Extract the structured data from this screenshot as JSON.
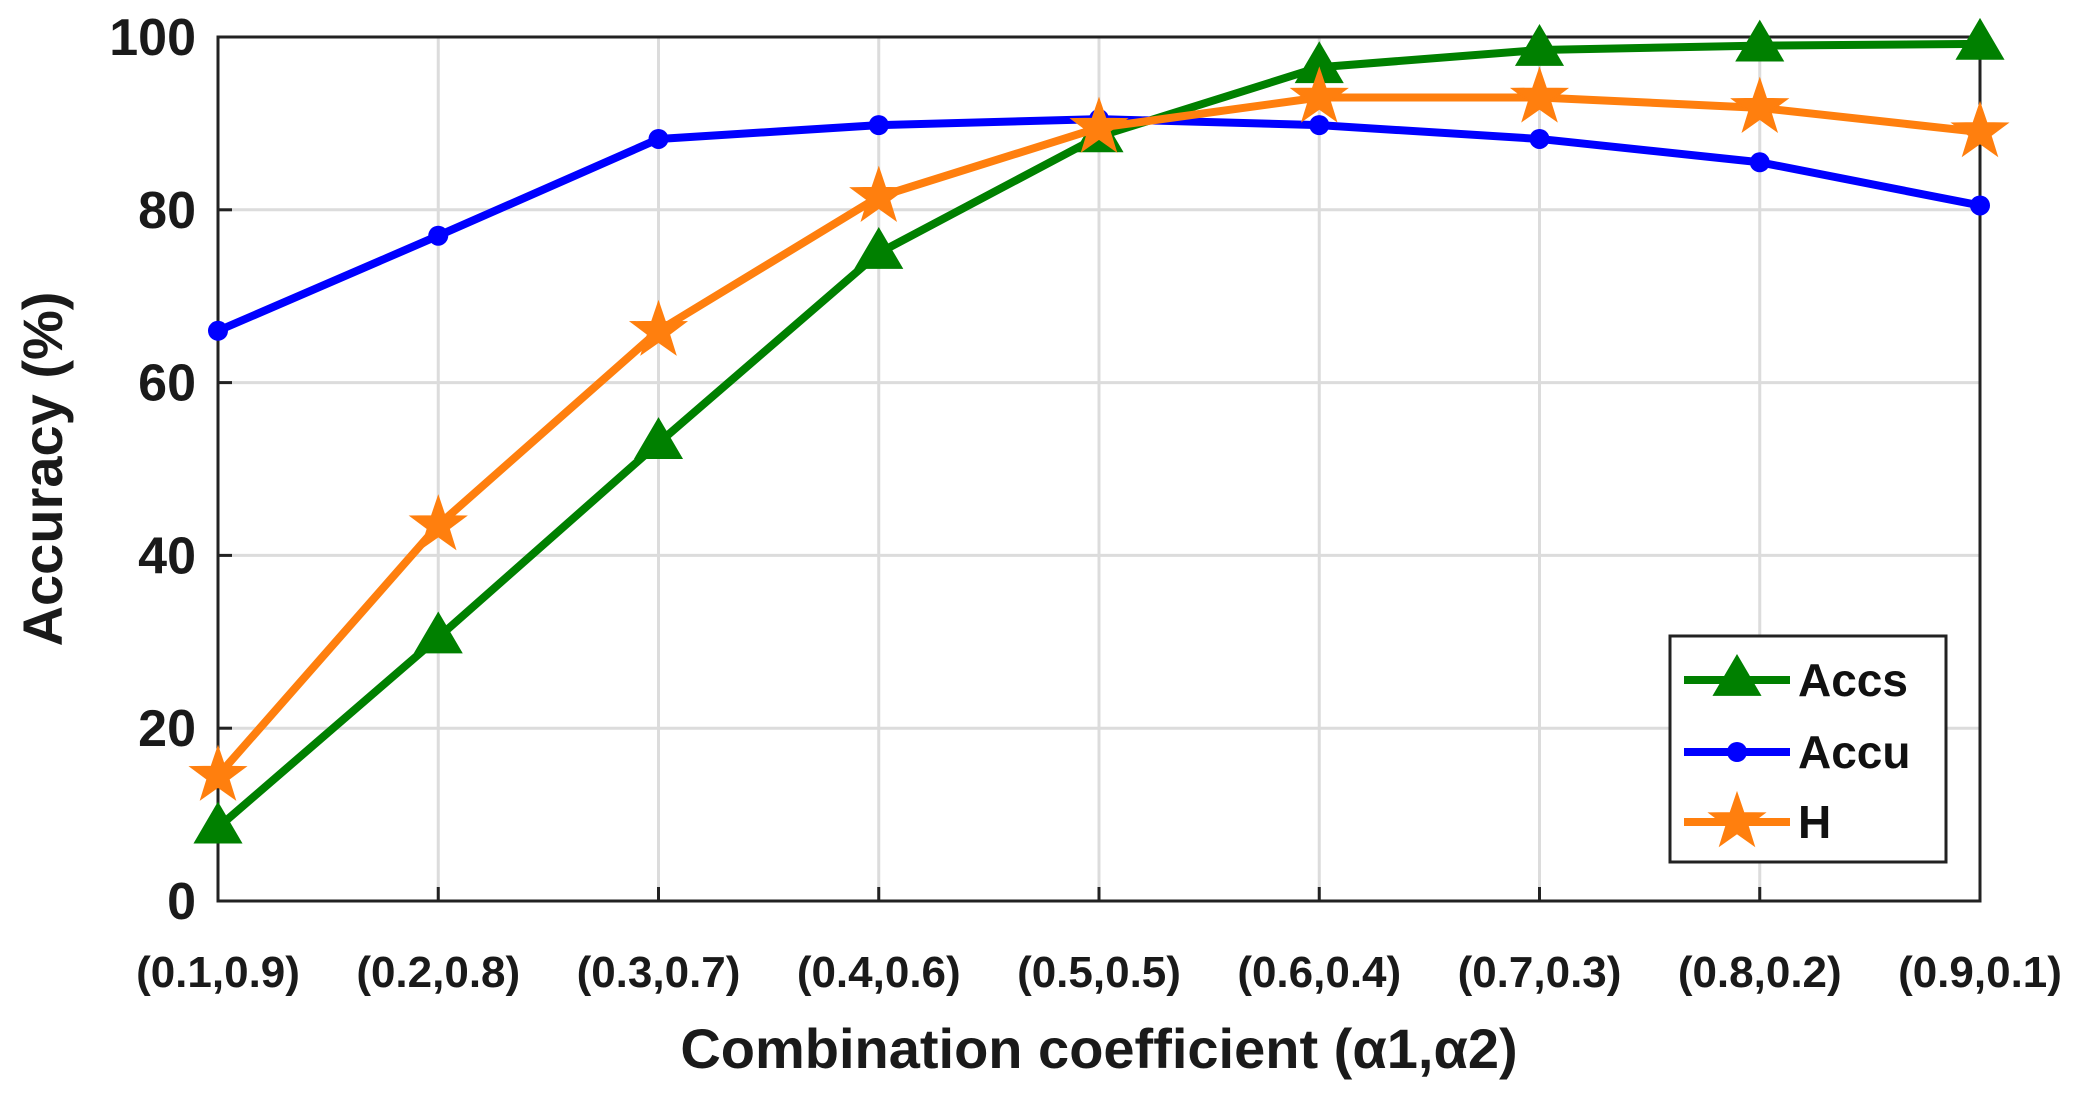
{
  "chart_data": {
    "type": "line",
    "xlabel": "Combination coefficient (α1,α2)",
    "ylabel": "Accuracy (%)",
    "categories": [
      "(0.1,0.9)",
      "(0.2,0.8)",
      "(0.3,0.7)",
      "(0.4,0.6)",
      "(0.5,0.5)",
      "(0.6,0.4)",
      "(0.7,0.3)",
      "(0.8,0.2)",
      "(0.9,0.1)"
    ],
    "ylim": [
      0,
      100
    ],
    "yticks": [
      "0",
      "20",
      "40",
      "60",
      "80",
      "100"
    ],
    "grid": true,
    "legend_position": "bottom-right",
    "series": [
      {
        "name": "Accs",
        "color": "#008000",
        "marker": "triangle",
        "values": [
          8.5,
          30.5,
          53,
          75,
          88.5,
          96.5,
          98.5,
          99,
          99.2
        ]
      },
      {
        "name": "Accu",
        "color": "#0000ff",
        "marker": "dot",
        "values": [
          66,
          77,
          88.2,
          89.8,
          90.5,
          89.8,
          88.2,
          85.5,
          80.5
        ]
      },
      {
        "name": "H",
        "color": "#ff7f0e",
        "marker": "star",
        "values": [
          14.5,
          43.5,
          66,
          81.5,
          89.5,
          93,
          93,
          91.8,
          89
        ]
      }
    ]
  }
}
